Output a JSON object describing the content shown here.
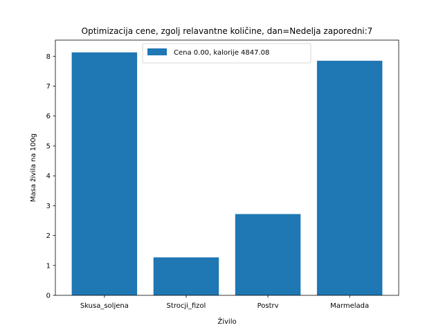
{
  "chart_data": {
    "type": "bar",
    "title": "Optimizacija cene, zgolj relavantne količine, dan=Nedelja  zaporedni:7",
    "xlabel": "Živilo",
    "ylabel": "Masa živila na 100g",
    "categories": [
      "Skusa_soljena",
      "Strocji_fizol",
      "Postrv",
      "Marmelada"
    ],
    "series": [
      {
        "name": "Cena 0.00, kalorije 4847.08",
        "values": [
          8.13,
          1.27,
          2.72,
          7.85
        ],
        "color": "#1f77b4"
      }
    ],
    "yticks": [
      0,
      1,
      2,
      3,
      4,
      5,
      6,
      7,
      8
    ],
    "ylim": [
      0,
      8.54
    ],
    "legend": "top-center",
    "grid": false
  }
}
